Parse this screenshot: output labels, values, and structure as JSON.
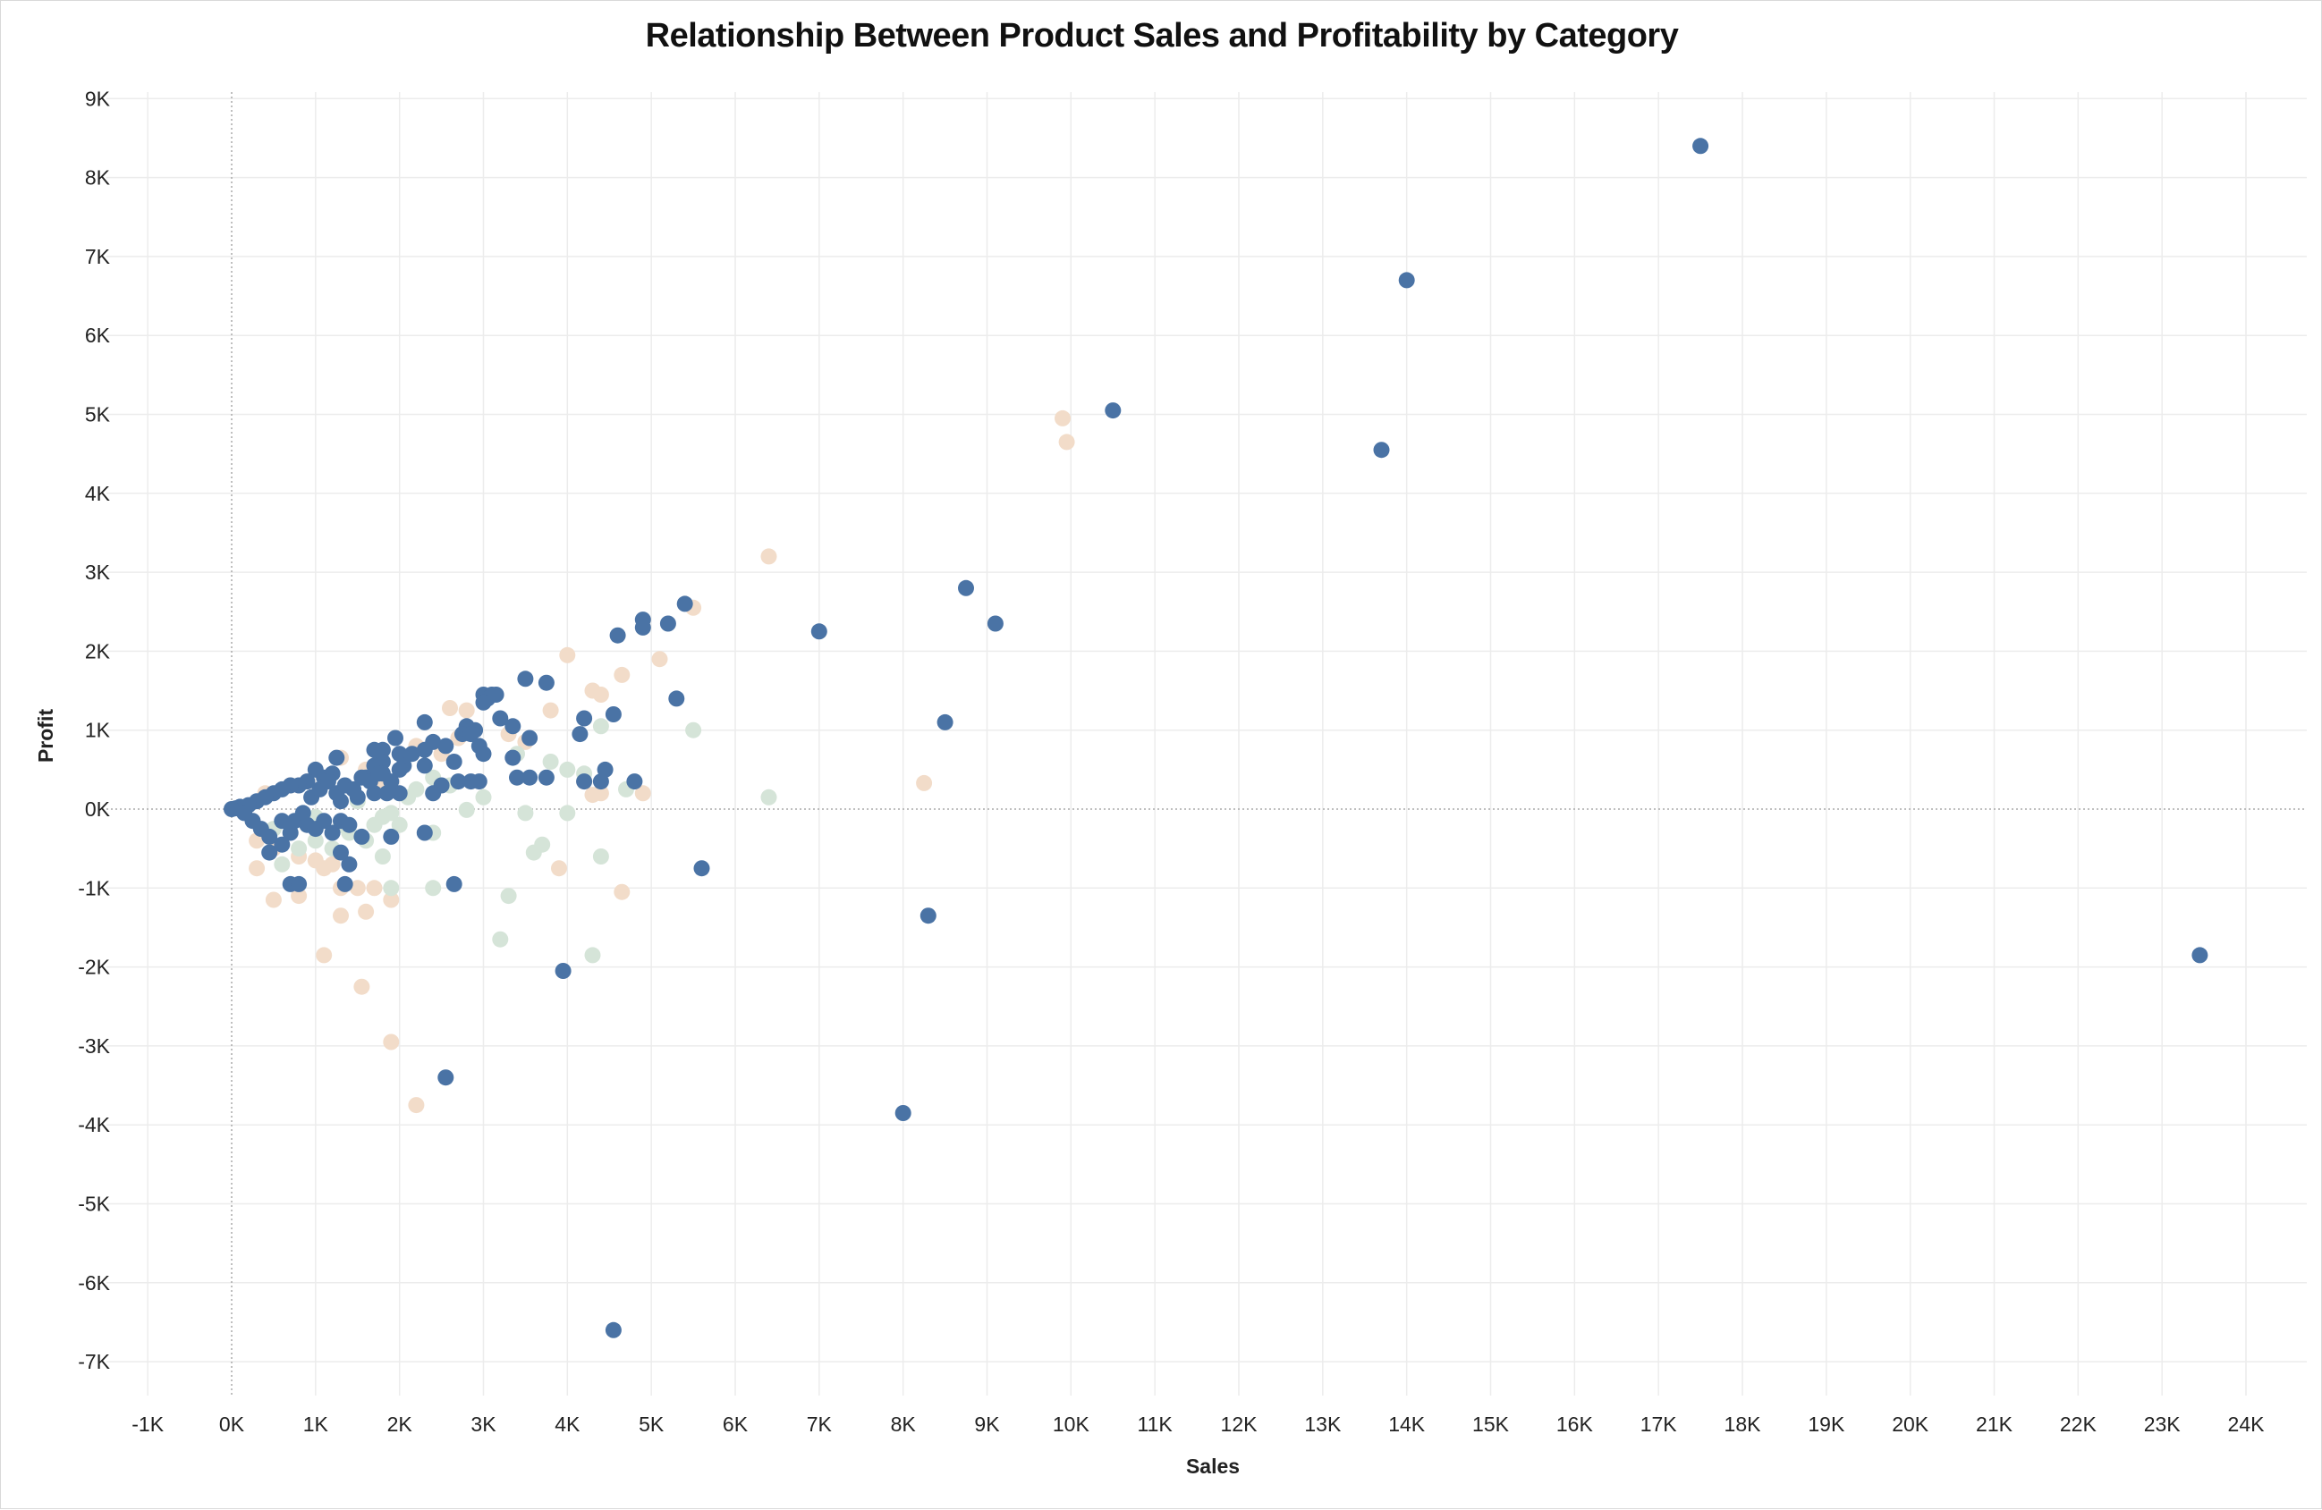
{
  "chart_data": {
    "type": "scatter",
    "title": "Relationship Between Product Sales and Profitability by Category",
    "xlabel": "Sales",
    "ylabel": "Profit",
    "xlim": [
      -1000,
      24500
    ],
    "ylim": [
      -7500,
      9400
    ],
    "x_ticks": [
      "-1K",
      "0K",
      "1K",
      "2K",
      "3K",
      "4K",
      "5K",
      "6K",
      "7K",
      "8K",
      "9K",
      "10K",
      "11K",
      "12K",
      "13K",
      "14K",
      "15K",
      "16K",
      "17K",
      "18K",
      "19K",
      "20K",
      "21K",
      "22K",
      "23K",
      "24K"
    ],
    "y_ticks": [
      "9K",
      "8K",
      "7K",
      "6K",
      "5K",
      "4K",
      "3K",
      "2K",
      "1K",
      "0K",
      "-1K",
      "-2K",
      "-3K",
      "-4K",
      "-5K",
      "-6K",
      "-7K"
    ],
    "grid": true,
    "zero_lines": true,
    "colors": {
      "tan": "#f2dcc9",
      "green": "#d5e4d8",
      "blue": "#4a73a5",
      "grid": "#ececec",
      "zero": "#aaaaaa"
    },
    "series": [
      {
        "color": "#f2dcc9",
        "points": [
          [
            9900,
            4950
          ],
          [
            9950,
            4650
          ],
          [
            6400,
            3200
          ],
          [
            5500,
            2550
          ],
          [
            4000,
            1950
          ],
          [
            5100,
            1900
          ],
          [
            4650,
            1700
          ],
          [
            4300,
            1500
          ],
          [
            4400,
            1450
          ],
          [
            3800,
            1250
          ],
          [
            2600,
            1280
          ],
          [
            2800,
            1250
          ],
          [
            3300,
            950
          ],
          [
            2700,
            900
          ],
          [
            3500,
            850
          ],
          [
            4200,
            350
          ],
          [
            4300,
            180
          ],
          [
            4400,
            200
          ],
          [
            4900,
            200
          ],
          [
            8250,
            330
          ],
          [
            1800,
            300
          ],
          [
            2200,
            800
          ],
          [
            2500,
            700
          ],
          [
            1600,
            500
          ],
          [
            1300,
            650
          ],
          [
            900,
            350
          ],
          [
            700,
            300
          ],
          [
            400,
            200
          ],
          [
            300,
            -400
          ],
          [
            500,
            -500
          ],
          [
            800,
            -600
          ],
          [
            1000,
            -650
          ],
          [
            1200,
            -700
          ],
          [
            1100,
            -750
          ],
          [
            300,
            -750
          ],
          [
            500,
            -1150
          ],
          [
            800,
            -1100
          ],
          [
            1300,
            -1000
          ],
          [
            1500,
            -1000
          ],
          [
            1700,
            -1000
          ],
          [
            1900,
            -1150
          ],
          [
            1600,
            -1300
          ],
          [
            1300,
            -1350
          ],
          [
            1100,
            -1850
          ],
          [
            1550,
            -2250
          ],
          [
            1900,
            -2950
          ],
          [
            2200,
            -3750
          ],
          [
            3900,
            -750
          ],
          [
            4650,
            -1050
          ]
        ]
      },
      {
        "color": "#d5e4d8",
        "points": [
          [
            4400,
            1050
          ],
          [
            5500,
            1000
          ],
          [
            6400,
            150
          ],
          [
            3400,
            700
          ],
          [
            3500,
            -50
          ],
          [
            4000,
            -50
          ],
          [
            3600,
            -550
          ],
          [
            3700,
            -450
          ],
          [
            4400,
            -600
          ],
          [
            3300,
            -1100
          ],
          [
            3200,
            -1650
          ],
          [
            4300,
            -1850
          ],
          [
            2400,
            -1000
          ],
          [
            2400,
            -300
          ],
          [
            1900,
            -50
          ],
          [
            1800,
            -100
          ],
          [
            2000,
            -200
          ],
          [
            2800,
            -10
          ],
          [
            3000,
            150
          ],
          [
            2200,
            250
          ],
          [
            1800,
            -600
          ],
          [
            1600,
            -400
          ],
          [
            1400,
            -300
          ],
          [
            1200,
            -500
          ],
          [
            1000,
            -400
          ],
          [
            700,
            -300
          ],
          [
            800,
            -500
          ],
          [
            600,
            -700
          ],
          [
            1900,
            -1000
          ],
          [
            4000,
            500
          ],
          [
            4700,
            250
          ],
          [
            4200,
            450
          ],
          [
            3800,
            600
          ],
          [
            1500,
            100
          ],
          [
            2400,
            400
          ],
          [
            2600,
            300
          ],
          [
            2100,
            150
          ],
          [
            1000,
            -100
          ],
          [
            900,
            -200
          ],
          [
            500,
            -250
          ],
          [
            1300,
            -200
          ],
          [
            1700,
            -200
          ]
        ]
      },
      {
        "color": "#4a73a5",
        "points": [
          [
            17500,
            8400
          ],
          [
            14000,
            6700
          ],
          [
            10500,
            5050
          ],
          [
            13700,
            4550
          ],
          [
            8750,
            2800
          ],
          [
            9100,
            2350
          ],
          [
            7000,
            2250
          ],
          [
            8500,
            1100
          ],
          [
            8300,
            -1350
          ],
          [
            8000,
            -3850
          ],
          [
            23450,
            -1850
          ],
          [
            5400,
            2600
          ],
          [
            4900,
            2400
          ],
          [
            5200,
            2350
          ],
          [
            4900,
            2300
          ],
          [
            4600,
            2200
          ],
          [
            3500,
            1650
          ],
          [
            3750,
            1600
          ],
          [
            5300,
            1400
          ],
          [
            3000,
            1450
          ],
          [
            3100,
            1450
          ],
          [
            3050,
            1400
          ],
          [
            3150,
            1450
          ],
          [
            3000,
            1350
          ],
          [
            4550,
            1200
          ],
          [
            4200,
            1150
          ],
          [
            3200,
            1150
          ],
          [
            2300,
            1100
          ],
          [
            3350,
            1050
          ],
          [
            2800,
            1050
          ],
          [
            2900,
            1000
          ],
          [
            2750,
            950
          ],
          [
            2850,
            950
          ],
          [
            3550,
            900
          ],
          [
            4150,
            950
          ],
          [
            1950,
            900
          ],
          [
            2400,
            850
          ],
          [
            2550,
            800
          ],
          [
            2300,
            750
          ],
          [
            2150,
            700
          ],
          [
            1700,
            750
          ],
          [
            1800,
            750
          ],
          [
            2000,
            700
          ],
          [
            2950,
            800
          ],
          [
            3000,
            700
          ],
          [
            3350,
            650
          ],
          [
            2650,
            600
          ],
          [
            1800,
            600
          ],
          [
            2300,
            550
          ],
          [
            2050,
            550
          ],
          [
            2000,
            500
          ],
          [
            1800,
            450
          ],
          [
            1700,
            550
          ],
          [
            1600,
            400
          ],
          [
            4450,
            500
          ],
          [
            3400,
            400
          ],
          [
            3550,
            400
          ],
          [
            3750,
            400
          ],
          [
            4200,
            350
          ],
          [
            4400,
            350
          ],
          [
            4800,
            350
          ],
          [
            2700,
            350
          ],
          [
            2850,
            350
          ],
          [
            2950,
            350
          ],
          [
            2500,
            300
          ],
          [
            2400,
            200
          ],
          [
            2000,
            200
          ],
          [
            1850,
            200
          ],
          [
            1700,
            200
          ],
          [
            1500,
            150
          ],
          [
            1300,
            100
          ],
          [
            1250,
            650
          ],
          [
            1000,
            500
          ],
          [
            1100,
            400
          ],
          [
            1200,
            450
          ],
          [
            900,
            350
          ],
          [
            800,
            300
          ],
          [
            700,
            300
          ],
          [
            600,
            250
          ],
          [
            500,
            200
          ],
          [
            400,
            150
          ],
          [
            300,
            100
          ],
          [
            200,
            50
          ],
          [
            100,
            30
          ],
          [
            50,
            10
          ],
          [
            0,
            0
          ],
          [
            150,
            -50
          ],
          [
            250,
            -150
          ],
          [
            350,
            -250
          ],
          [
            450,
            -350
          ],
          [
            600,
            -150
          ],
          [
            700,
            -300
          ],
          [
            900,
            -200
          ],
          [
            1000,
            -250
          ],
          [
            1100,
            -150
          ],
          [
            1200,
            -300
          ],
          [
            1300,
            -150
          ],
          [
            1400,
            -200
          ],
          [
            1550,
            -350
          ],
          [
            1400,
            -700
          ],
          [
            1300,
            -550
          ],
          [
            1350,
            -950
          ],
          [
            1900,
            -350
          ],
          [
            2300,
            -300
          ],
          [
            700,
            -950
          ],
          [
            800,
            -950
          ],
          [
            2650,
            -950
          ],
          [
            5600,
            -750
          ],
          [
            3950,
            -2050
          ],
          [
            2550,
            -3400
          ],
          [
            4550,
            -6600
          ],
          [
            450,
            -550
          ],
          [
            600,
            -450
          ],
          [
            750,
            -150
          ],
          [
            850,
            -50
          ],
          [
            950,
            150
          ],
          [
            1050,
            250
          ],
          [
            1150,
            350
          ],
          [
            1250,
            200
          ],
          [
            1350,
            300
          ],
          [
            1450,
            250
          ],
          [
            1550,
            400
          ],
          [
            1650,
            350
          ],
          [
            1750,
            450
          ],
          [
            1900,
            350
          ]
        ]
      }
    ]
  }
}
